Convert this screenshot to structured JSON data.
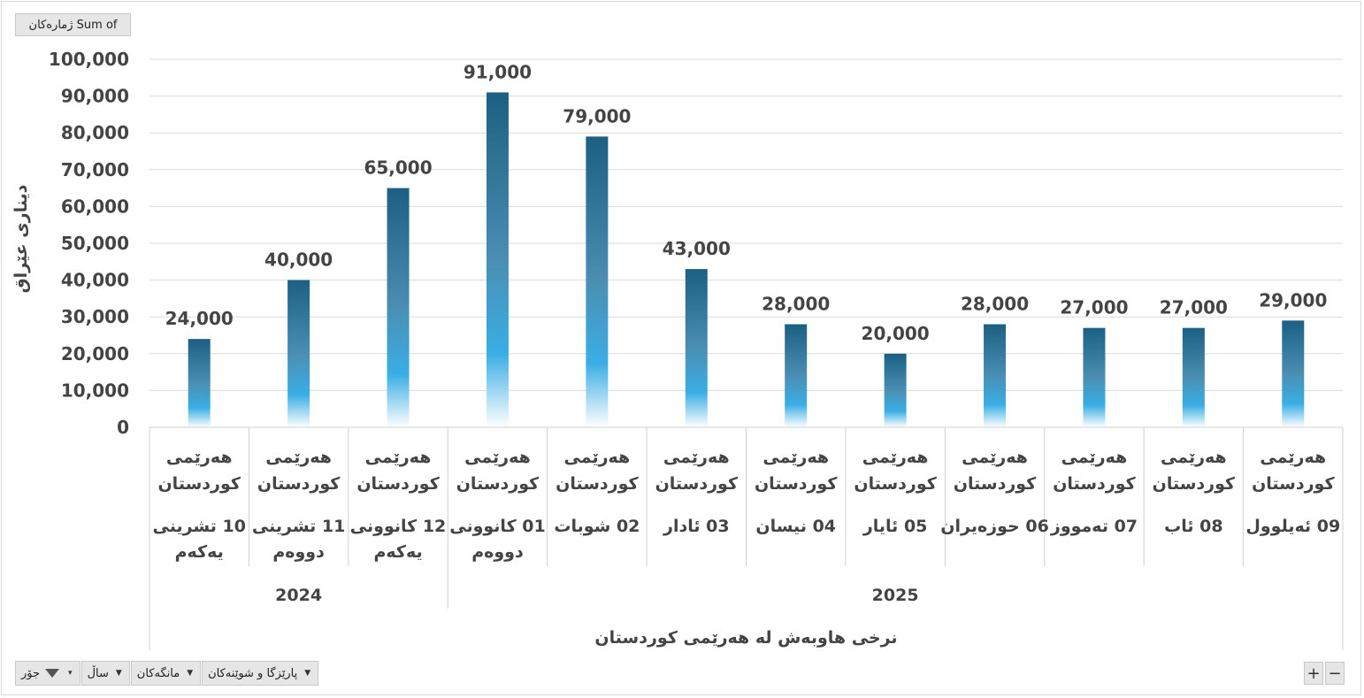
{
  "sum_field_label": "Sum of  ژمارەکان",
  "filters": [
    {
      "label": "جۆر",
      "icon": "filter-icon"
    },
    {
      "label": "ساڵ"
    },
    {
      "label": "مانگەکان"
    },
    {
      "label": "پارێزگا و شوێنەکان"
    }
  ],
  "zoom": {
    "plus": "+",
    "minus": "−"
  },
  "colors": {
    "bar_top": "#1b5f82",
    "bar_mid": "#3aaee5",
    "bar_bottom": "#ffffff",
    "grid": "#d9d9d9",
    "text": "#444444"
  },
  "chart_data": {
    "type": "bar",
    "ylabel": "دیناری عێراق",
    "xlabel": "نرخی هاوبەش لە هەرێمی  کوردستان",
    "ylim": [
      0,
      100000
    ],
    "yticks": [
      "0",
      "10,000",
      "20,000",
      "30,000",
      "40,000",
      "50,000",
      "60,000",
      "70,000",
      "80,000",
      "90,000",
      "100,000"
    ],
    "grid": true,
    "region_label": [
      "هەرێمی",
      "کوردستان"
    ],
    "categories": [
      {
        "month": [
          "10 تشرینی",
          "یەکەم"
        ],
        "year": "2024"
      },
      {
        "month": [
          "11 تشرینی",
          "دووەم"
        ],
        "year": "2024"
      },
      {
        "month": [
          "12 کانوونی",
          "یەکەم"
        ],
        "year": "2024"
      },
      {
        "month": [
          "01 کانوونی",
          "دووەم"
        ],
        "year": "2025"
      },
      {
        "month": [
          "02 شوبات"
        ],
        "year": "2025"
      },
      {
        "month": [
          "03 ئادار"
        ],
        "year": "2025"
      },
      {
        "month": [
          "04 نیسان"
        ],
        "year": "2025"
      },
      {
        "month": [
          "05 ئایار"
        ],
        "year": "2025"
      },
      {
        "month": [
          "06 حوزەیران"
        ],
        "year": "2025"
      },
      {
        "month": [
          "07 تەمووز"
        ],
        "year": "2025"
      },
      {
        "month": [
          "08 ئاب"
        ],
        "year": "2025"
      },
      {
        "month": [
          "09 ئەیلوول"
        ],
        "year": "2025"
      }
    ],
    "years": [
      "2024",
      "2025"
    ],
    "values": [
      24000,
      40000,
      65000,
      91000,
      79000,
      43000,
      28000,
      20000,
      28000,
      27000,
      27000,
      29000
    ],
    "data_labels": [
      "24,000",
      "40,000",
      "65,000",
      "91,000",
      "79,000",
      "43,000",
      "28,000",
      "20,000",
      "28,000",
      "27,000",
      "27,000",
      "29,000"
    ]
  }
}
